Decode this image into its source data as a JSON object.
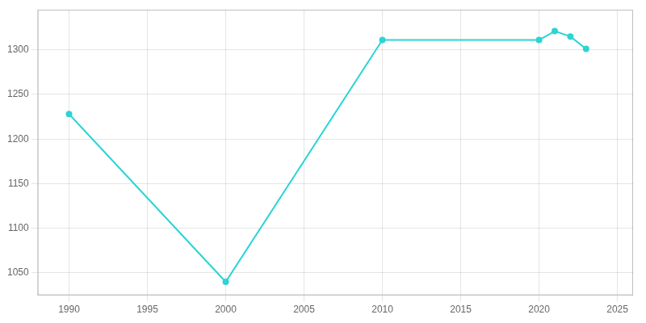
{
  "chart_data": {
    "type": "line",
    "x": [
      1990,
      2000,
      2010,
      2020,
      2021,
      2022,
      2023
    ],
    "values": [
      1228,
      1040,
      1311,
      1311,
      1321,
      1315,
      1301
    ],
    "color": "#2dd4d4",
    "marker": "circle",
    "xlim": [
      1988,
      2026
    ],
    "ylim": [
      1025,
      1345
    ],
    "xticks": [
      1990,
      1995,
      2000,
      2005,
      2010,
      2015,
      2020,
      2025
    ],
    "yticks": [
      1050,
      1100,
      1150,
      1200,
      1250,
      1300
    ],
    "grid": true
  }
}
